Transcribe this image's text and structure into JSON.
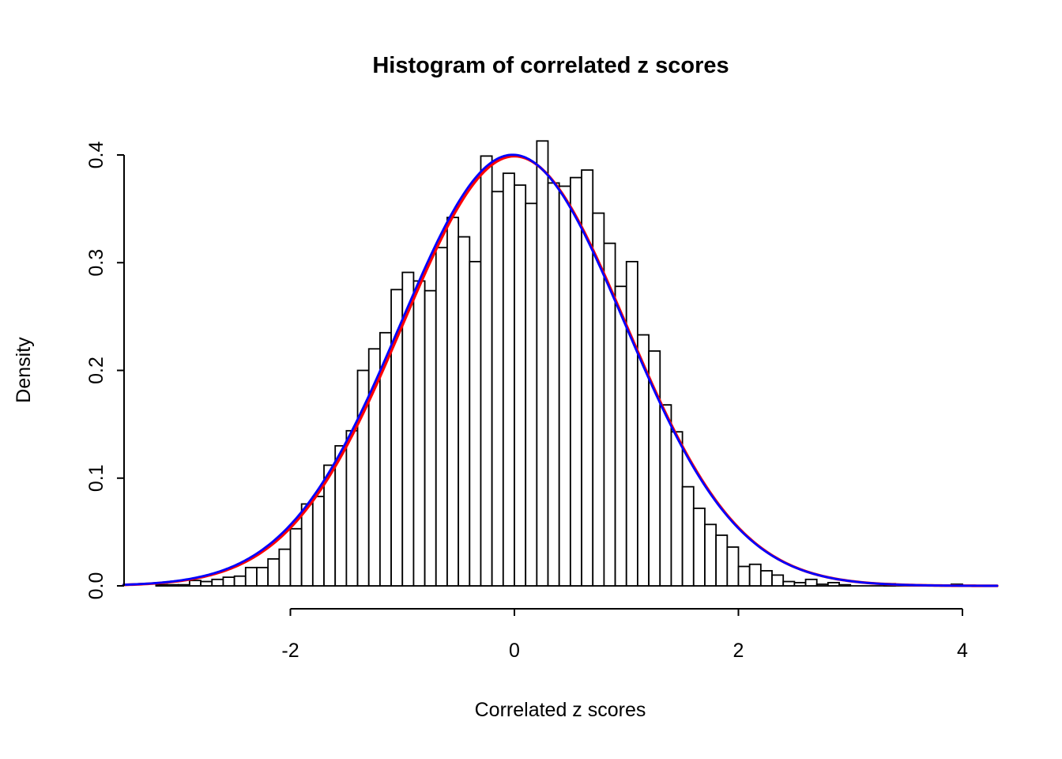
{
  "chart_data": {
    "type": "bar",
    "subtype": "histogram-with-density-curves",
    "title": "Histogram of correlated z scores",
    "xlabel": "Correlated z scores",
    "ylabel": "Density",
    "x_ticks": [
      -2,
      0,
      2,
      4
    ],
    "x_tick_labels": [
      "-2",
      "0",
      "2",
      "4"
    ],
    "y_ticks": [
      0.0,
      0.1,
      0.2,
      0.3,
      0.4
    ],
    "y_tick_labels": [
      "0.0",
      "0.1",
      "0.2",
      "0.3",
      "0.4"
    ],
    "xlim": [
      -3.49,
      4.31
    ],
    "ylim": [
      0.0,
      0.41
    ],
    "grid": false,
    "legend": "none",
    "bin_start": -3.2,
    "bin_width": 0.1,
    "bar_fill": "#ffffff",
    "bar_border": "#000000",
    "axis_color": "#000000",
    "densities": [
      0.001,
      0.001,
      0.001,
      0.005,
      0.004,
      0.006,
      0.008,
      0.009,
      0.017,
      0.017,
      0.025,
      0.034,
      0.053,
      0.076,
      0.083,
      0.112,
      0.13,
      0.144,
      0.2,
      0.22,
      0.235,
      0.275,
      0.291,
      0.283,
      0.274,
      0.314,
      0.342,
      0.324,
      0.301,
      0.399,
      0.366,
      0.383,
      0.372,
      0.355,
      0.413,
      0.374,
      0.371,
      0.379,
      0.386,
      0.346,
      0.318,
      0.278,
      0.301,
      0.233,
      0.218,
      0.168,
      0.143,
      0.092,
      0.072,
      0.057,
      0.047,
      0.036,
      0.018,
      0.02,
      0.014,
      0.01,
      0.004,
      0.003,
      0.006,
      0.0015,
      0.003,
      0.001,
      0.0,
      0.0,
      0.0,
      0.002,
      0.0,
      0.0,
      0.0,
      0.0,
      0.0,
      0.0015
    ],
    "curves": [
      {
        "name": "theoretical-normal-curve",
        "color": "#ff0000",
        "mean": 0.0,
        "sd": 1.0,
        "peak": 0.3989,
        "line_width": 3.4
      },
      {
        "name": "kernel-density-curve",
        "color": "#0000ff",
        "mean": -0.015,
        "sd": 1.004,
        "peak": 0.4002,
        "line_width": 2.8
      }
    ]
  }
}
